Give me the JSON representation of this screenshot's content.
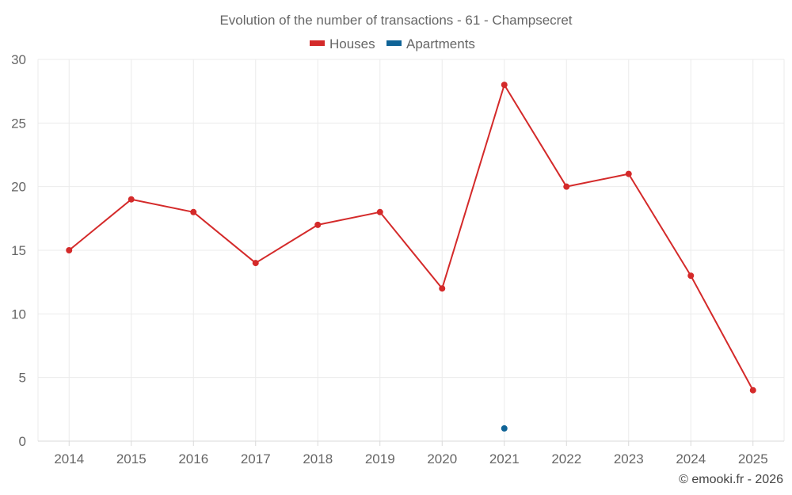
{
  "chart_data": {
    "type": "line",
    "title": "Evolution of the number of transactions - 61 - Champsecret",
    "xlabel": "",
    "ylabel": "",
    "categories": [
      "2014",
      "2015",
      "2016",
      "2017",
      "2018",
      "2019",
      "2020",
      "2021",
      "2022",
      "2023",
      "2024",
      "2025"
    ],
    "ylim": [
      0,
      30
    ],
    "yticks": [
      0,
      5,
      10,
      15,
      20,
      25,
      30
    ],
    "grid": true,
    "legend_position": "top-center",
    "series": [
      {
        "name": "Houses",
        "color": "#d42a2a",
        "values": [
          15,
          19,
          18,
          14,
          17,
          18,
          12,
          28,
          20,
          21,
          13,
          4
        ]
      },
      {
        "name": "Apartments",
        "color": "#0f6396",
        "values": [
          null,
          null,
          null,
          null,
          null,
          null,
          null,
          1,
          null,
          null,
          null,
          null
        ]
      }
    ]
  },
  "credit": "© emooki.fr - 2026"
}
